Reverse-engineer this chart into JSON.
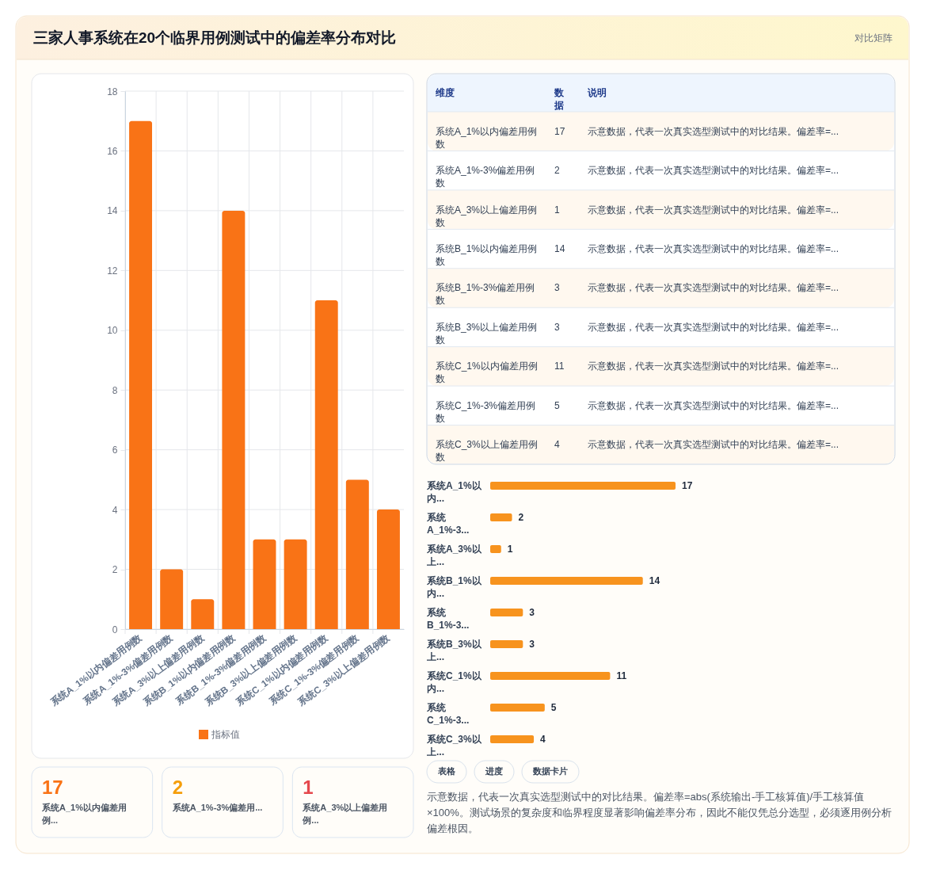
{
  "chart_data": [
    {
      "type": "other",
      "title": "三家人事系统在20个临界用例测试中的偏差率分布对比",
      "subtitle": "对比矩阵"
    },
    {
      "type": "bar",
      "categories": [
        "系统A_1%以内偏差用例数",
        "系统A_1%-3%偏差用例数",
        "系统A_3%以上偏差用例数",
        "系统B_1%以内偏差用例数",
        "系统B_1%-3%偏差用例数",
        "系统B_3%以上偏差用例数",
        "系统C_1%以内偏差用例数",
        "系统C_1%-3%偏差用例数",
        "系统C_3%以上偏差用例数"
      ],
      "series": [
        {
          "name": "指标值",
          "color": "#f97316",
          "values": [
            17,
            2,
            1,
            14,
            3,
            3,
            11,
            5,
            4
          ]
        }
      ],
      "ylim": [
        0,
        18
      ],
      "yticks": [
        0,
        2,
        4,
        6,
        8,
        10,
        12,
        14,
        16,
        18
      ],
      "grid": true,
      "legend": "bottom"
    },
    {
      "type": "other",
      "categories": [
        "系统A_1%以内偏差用例...",
        "系统A_1%-3%偏差用...",
        "系统A_3%以上偏差用例..."
      ],
      "values": [
        17,
        2,
        1
      ],
      "colors": [
        "#f97316",
        "#f59e0b",
        "#e5484d"
      ],
      "data_labels": true
    },
    {
      "type": "other",
      "ylabel": "维度",
      "xlabel": "数据",
      "y2label": "说明",
      "categories": [
        "系统A_1%以内偏差用例数",
        "系统A_1%-3%偏差用例数",
        "系统A_3%以上偏差用例数",
        "系统B_1%以内偏差用例数",
        "系统B_1%-3%偏差用例数",
        "系统B_3%以上偏差用例数",
        "系统C_1%以内偏差用例数",
        "系统C_1%-3%偏差用例数",
        "系统C_3%以上偏差用例数"
      ],
      "values": [
        17,
        2,
        1,
        14,
        3,
        3,
        11,
        5,
        4
      ],
      "data_labels": true,
      "annotations": [
        "示意数据，代表一次真实选型测试中的对比结果。偏差率=...",
        "示意数据，代表一次真实选型测试中的对比结果。偏差率=...",
        "示意数据，代表一次真实选型测试中的对比结果。偏差率=...",
        "示意数据，代表一次真实选型测试中的对比结果。偏差率=...",
        "示意数据，代表一次真实选型测试中的对比结果。偏差率=...",
        "示意数据，代表一次真实选型测试中的对比结果。偏差率=...",
        "示意数据，代表一次真实选型测试中的对比结果。偏差率=...",
        "示意数据，代表一次真实选型测试中的对比结果。偏差率=...",
        "示意数据，代表一次真实选型测试中的对比结果。偏差率=..."
      ]
    },
    {
      "type": "bar",
      "orientation": "horizontal",
      "categories": [
        "系统A_1%以内...",
        "系统A_1%-3...",
        "系统A_3%以上...",
        "系统B_1%以内...",
        "系统B_1%-3...",
        "系统B_3%以上...",
        "系统C_1%以内...",
        "系统C_1%-3...",
        "系统C_3%以上..."
      ],
      "values": [
        17,
        2,
        1,
        14,
        3,
        3,
        11,
        5,
        4
      ],
      "color": "#f7931e",
      "data_labels": true
    },
    {
      "type": "other",
      "categories": [
        "表格",
        "进度",
        "数据卡片"
      ],
      "annotations": [
        "示意数据，代表一次真实选型测试中的对比结果。偏差率=abs(系统输出-手工核算值)/手工核算值×100%。测试场景的复杂度和临界程度显著影响偏差率分布，因此不能仅凭总分选型，必须逐用例分析偏差根因。"
      ]
    }
  ]
}
